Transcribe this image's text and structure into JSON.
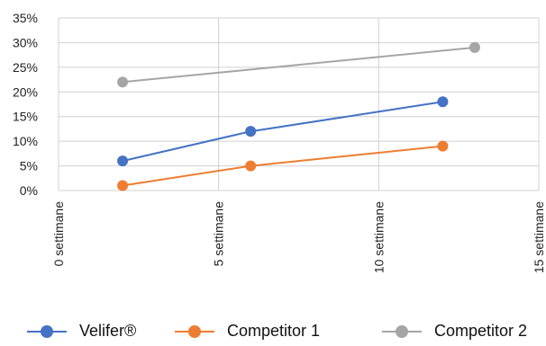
{
  "chart_data": {
    "type": "scatter",
    "mode": "lines+markers",
    "x_axis": {
      "ticks": [
        0,
        5,
        10,
        15
      ],
      "tick_labels": [
        "0 settimane",
        "5 settimane",
        "10 settimane",
        "15 settimane"
      ],
      "range": [
        0,
        15
      ]
    },
    "y_axis": {
      "ticks": [
        0,
        5,
        10,
        15,
        20,
        25,
        30,
        35
      ],
      "tick_labels": [
        "0%",
        "5%",
        "10%",
        "15%",
        "20%",
        "25%",
        "30%",
        "35%"
      ],
      "range": [
        0,
        35
      ],
      "unit": "%"
    },
    "grid": true,
    "legend_position": "bottom",
    "series": [
      {
        "name": "Velifer®",
        "color": "#4472C4",
        "x": [
          2,
          6,
          12
        ],
        "y": [
          6,
          12,
          18
        ]
      },
      {
        "name": "Competitor 1",
        "color": "#ED7D31",
        "x": [
          2,
          6,
          12
        ],
        "y": [
          1,
          5,
          9
        ]
      },
      {
        "name": "Competitor 2",
        "color": "#A5A5A5",
        "x": [
          2,
          13
        ],
        "y": [
          22,
          29
        ]
      }
    ]
  },
  "legend": {
    "items": [
      {
        "label": "Velifer®"
      },
      {
        "label": "Competitor 1"
      },
      {
        "label": "Competitor 2"
      }
    ]
  }
}
